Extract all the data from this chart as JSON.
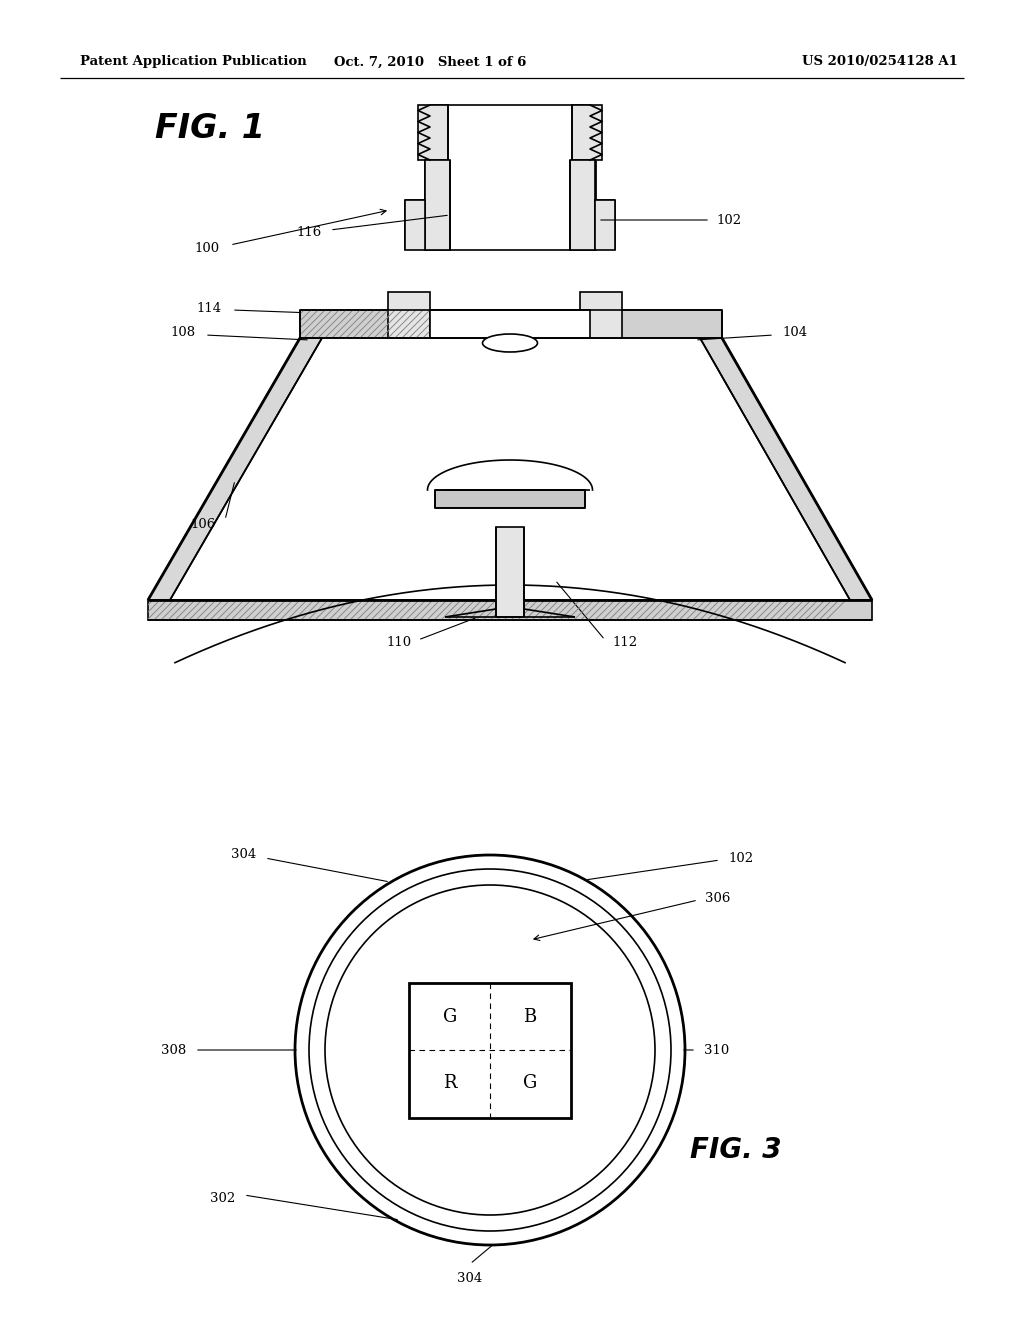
{
  "bg_color": "#ffffff",
  "header_left": "Patent Application Publication",
  "header_mid": "Oct. 7, 2010   Sheet 1 of 6",
  "header_right": "US 2010/0254128 A1",
  "fig1_label": "FIG. 1",
  "fig3_label": "FIG. 3"
}
